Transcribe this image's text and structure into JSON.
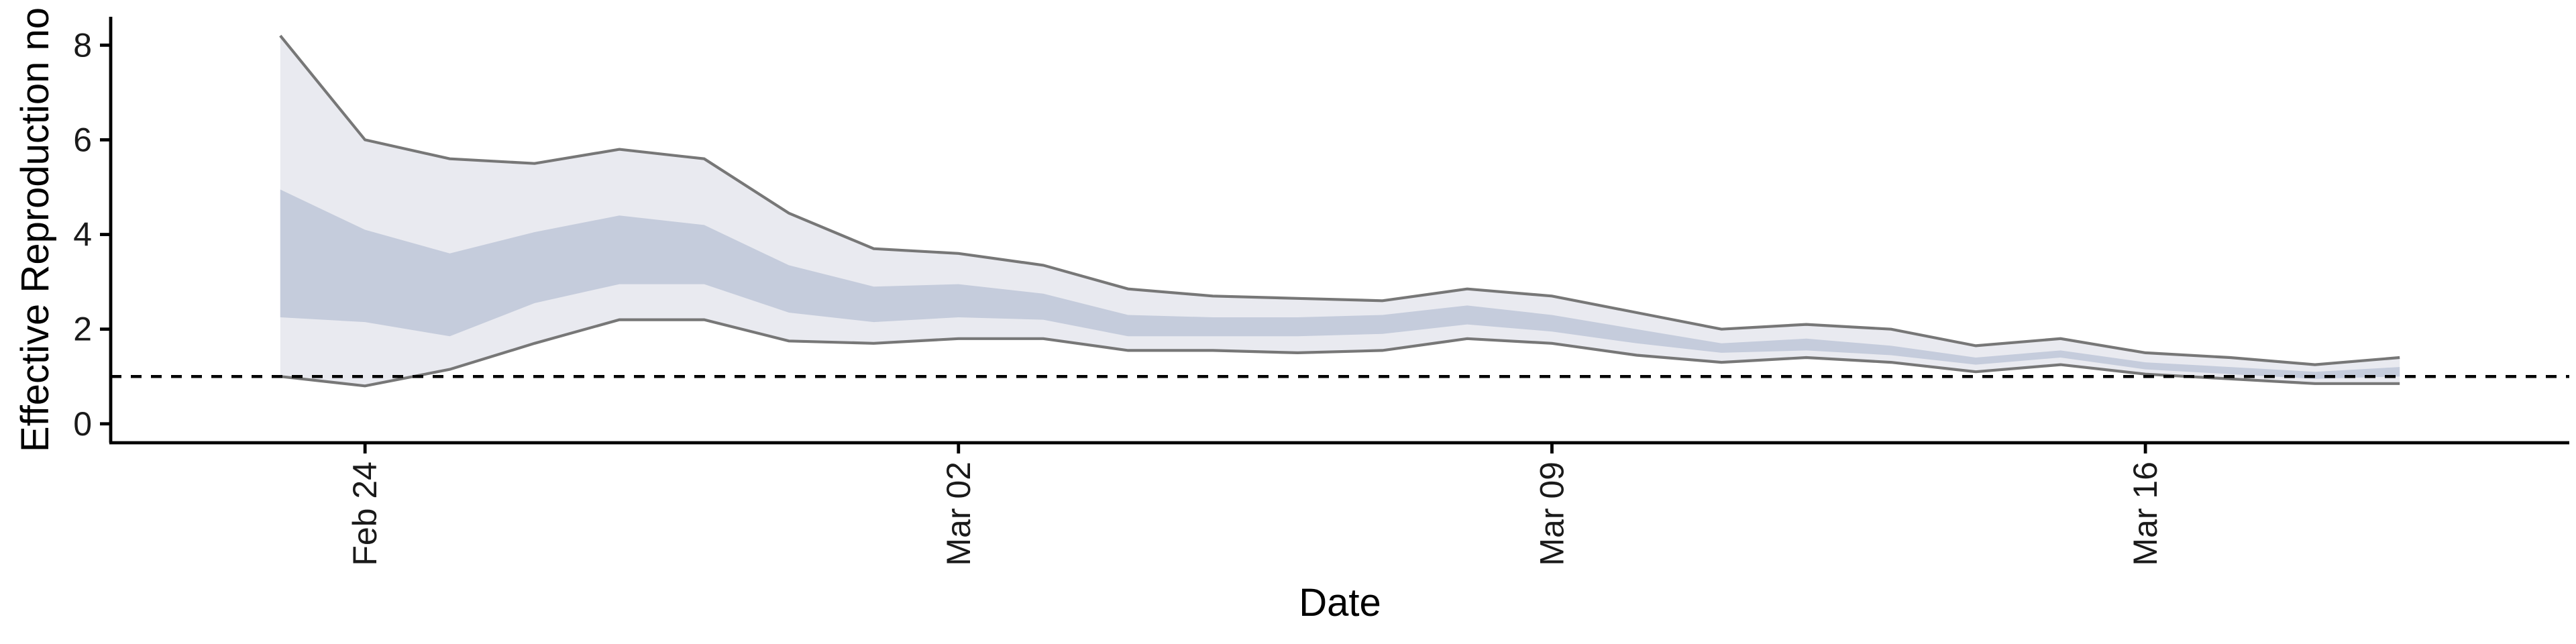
{
  "chart_data": {
    "type": "area",
    "title": "",
    "xlabel": "Date",
    "ylabel": "Effective Reproduction no",
    "x_ticks": [
      "Feb 24",
      "Mar 02",
      "Mar 09",
      "Mar 16"
    ],
    "y_ticks": [
      0,
      2,
      4,
      6,
      8
    ],
    "ylim": [
      -0.4,
      8.6
    ],
    "xlim": [
      "2020-02-21",
      "2020-03-21"
    ],
    "reference_line": 1,
    "grid": false,
    "legend": "none",
    "colors": {
      "outer_band": "#e9eaf0",
      "inner_band": "#c5ccdc",
      "bound_lines": "#777777",
      "reference_line": "#000000"
    },
    "x": [
      "2020-02-23",
      "2020-02-24",
      "2020-02-25",
      "2020-02-26",
      "2020-02-27",
      "2020-02-28",
      "2020-02-29",
      "2020-03-01",
      "2020-03-02",
      "2020-03-03",
      "2020-03-04",
      "2020-03-05",
      "2020-03-06",
      "2020-03-07",
      "2020-03-08",
      "2020-03-09",
      "2020-03-10",
      "2020-03-11",
      "2020-03-12",
      "2020-03-13",
      "2020-03-14",
      "2020-03-15",
      "2020-03-16",
      "2020-03-17",
      "2020-03-18",
      "2020-03-19"
    ],
    "series": [
      {
        "key": "outer_upper",
        "values": [
          8.2,
          6.0,
          5.6,
          5.5,
          5.8,
          5.6,
          4.45,
          3.7,
          3.6,
          3.35,
          2.85,
          2.7,
          2.65,
          2.6,
          2.85,
          2.7,
          2.35,
          2.0,
          2.1,
          2.0,
          1.65,
          1.8,
          1.5,
          1.4,
          1.25,
          1.4
        ]
      },
      {
        "key": "inner_upper",
        "values": [
          4.95,
          4.1,
          3.6,
          4.05,
          4.4,
          4.2,
          3.35,
          2.9,
          2.95,
          2.75,
          2.3,
          2.25,
          2.25,
          2.3,
          2.5,
          2.3,
          2.0,
          1.7,
          1.8,
          1.65,
          1.4,
          1.55,
          1.3,
          1.2,
          1.1,
          1.2
        ]
      },
      {
        "key": "inner_lower",
        "values": [
          2.25,
          2.15,
          1.85,
          2.55,
          2.95,
          2.95,
          2.35,
          2.15,
          2.25,
          2.2,
          1.85,
          1.85,
          1.85,
          1.9,
          2.1,
          1.95,
          1.7,
          1.5,
          1.55,
          1.45,
          1.25,
          1.4,
          1.15,
          1.05,
          0.95,
          1.0
        ]
      },
      {
        "key": "outer_lower",
        "values": [
          1.0,
          0.8,
          1.15,
          1.7,
          2.2,
          2.2,
          1.75,
          1.7,
          1.8,
          1.8,
          1.55,
          1.55,
          1.5,
          1.55,
          1.8,
          1.7,
          1.45,
          1.3,
          1.4,
          1.3,
          1.1,
          1.25,
          1.05,
          0.95,
          0.85,
          0.85
        ]
      }
    ]
  }
}
